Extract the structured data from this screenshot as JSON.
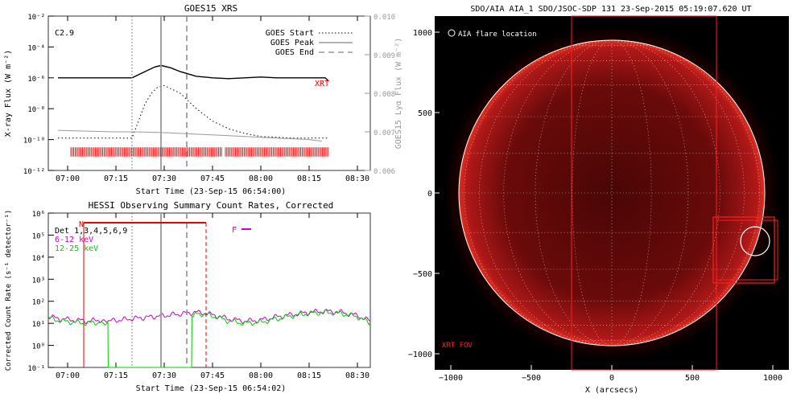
{
  "chart_data": [
    {
      "type": "line",
      "title": "GOES15 XRS",
      "xlabel": "Start Time (23-Sep-15 06:54:00)",
      "ylabel": "X-ray Flux (W m⁻²)",
      "y2label": "GOES15 Lyα Flux (W m⁻²)",
      "flare_class": "C2.9",
      "x_ticks": [
        "07:00",
        "07:15",
        "07:30",
        "07:45",
        "08:00",
        "08:15",
        "08:30"
      ],
      "y_ticks": [
        "10⁻²",
        "10⁻⁴",
        "10⁻⁶",
        "10⁻⁸",
        "10⁻¹⁰",
        "10⁻¹²"
      ],
      "y2_ticks": [
        "0.010",
        "0.009",
        "0.008",
        "0.007",
        "0.006"
      ],
      "ylim": [
        -12,
        -2
      ],
      "y2lim": [
        0.006,
        0.01
      ],
      "xlim_minutes": [
        54,
        154
      ],
      "legend": [
        {
          "label": "GOES Start",
          "style": "dotted"
        },
        {
          "label": "GOES Peak",
          "style": "solid"
        },
        {
          "label": "GOES End",
          "style": "dashed"
        }
      ],
      "events": {
        "start": 80,
        "peak": 89,
        "end": 97
      },
      "xrt_label": "XRT",
      "series": [
        {
          "name": "",
          "color": "#000000",
          "x": [
            57,
            65,
            75,
            80,
            84,
            87,
            89,
            92,
            95,
            100,
            105,
            110,
            115,
            120,
            125,
            130,
            135,
            138,
            140,
            141
          ],
          "y": [
            -6.0,
            -6.0,
            -6.0,
            -6.0,
            -5.6,
            -5.3,
            -5.2,
            -5.35,
            -5.6,
            -5.9,
            -6.0,
            -6.05,
            -6.0,
            -5.95,
            -6.0,
            -6.0,
            -6.0,
            -6.0,
            -6.0,
            -6.2
          ]
        },
        {
          "name": "",
          "color": "#000000",
          "dotted": true,
          "x": [
            57,
            65,
            75,
            80,
            82,
            84,
            86,
            88,
            90,
            92,
            95,
            100,
            105,
            110,
            115,
            120,
            125,
            130,
            135,
            138,
            141
          ],
          "y": [
            -9.9,
            -9.9,
            -9.9,
            -9.9,
            -8.8,
            -7.7,
            -7.0,
            -6.6,
            -6.5,
            -6.7,
            -7.0,
            -8.0,
            -8.8,
            -9.3,
            -9.6,
            -9.8,
            -9.85,
            -9.9,
            -9.9,
            -9.9,
            -9.9
          ]
        },
        {
          "name": "",
          "color": "#999999",
          "x": [
            57,
            65,
            75,
            80,
            85,
            90,
            95,
            100,
            105,
            110,
            115,
            120,
            125,
            130,
            135,
            139
          ],
          "y": [
            -9.4,
            -9.45,
            -9.5,
            -9.5,
            -9.52,
            -9.55,
            -9.6,
            -9.65,
            -9.7,
            -9.75,
            -9.8,
            -9.85,
            -9.9,
            -9.95,
            -10.0,
            -10.1
          ]
        }
      ],
      "xrt_coverage": [
        [
          61,
          108
        ],
        [
          109,
          141
        ]
      ]
    },
    {
      "type": "line",
      "title": "HESSI Observing Summary Count Rates, Corrected",
      "xlabel": "Start Time (23-Sep-15 06:54:02)",
      "ylabel": "Corrected Count Rate (s⁻¹ detector⁻¹)",
      "x_ticks": [
        "07:00",
        "07:15",
        "07:30",
        "07:45",
        "08:00",
        "08:15",
        "08:30"
      ],
      "y_ticks": [
        "10⁶",
        "10⁵",
        "10⁴",
        "10³",
        "10²",
        "10¹",
        "10⁰",
        "10⁻¹"
      ],
      "ylim": [
        -1,
        6
      ],
      "xlim_minutes": [
        54,
        154
      ],
      "legend": [
        {
          "label": "Det 1,3,4,5,6,9",
          "color": "#000000"
        },
        {
          "label": "6-12 keV",
          "color": "#cc00cc"
        },
        {
          "label": "12-25 keV",
          "color": "#00cc00"
        }
      ],
      "night_label": "N",
      "flag_label": "F",
      "night_interval": [
        65,
        103
      ],
      "flag_interval": [
        112,
        115
      ],
      "series": [
        {
          "name": "6-12 keV",
          "color": "#cc00cc",
          "x": [
            54,
            58,
            62,
            66,
            70,
            72.5,
            100,
            103,
            106,
            110,
            115,
            120,
            125,
            130,
            135,
            140,
            145,
            150,
            154
          ],
          "y": [
            1.3,
            1.2,
            1.15,
            1.1,
            1.15,
            1.1,
            1.5,
            1.45,
            1.35,
            1.2,
            1.1,
            1.15,
            1.3,
            1.4,
            1.5,
            1.55,
            1.5,
            1.35,
            1.1
          ]
        },
        {
          "name": "12-25 keV",
          "color": "#00cc00",
          "x": [
            54,
            58,
            62,
            66,
            70,
            72.5,
            72.6,
            98.5,
            98.6,
            100,
            103,
            106,
            110,
            115,
            120,
            125,
            130,
            135,
            140,
            145,
            150,
            154
          ],
          "y": [
            1.25,
            1.1,
            1.05,
            1.0,
            1.05,
            1.0,
            -1,
            -1,
            1.2,
            1.45,
            1.4,
            1.3,
            1.1,
            1.0,
            1.05,
            1.2,
            1.35,
            1.45,
            1.5,
            1.45,
            1.3,
            1.0
          ]
        }
      ]
    }
  ],
  "image_panel": {
    "title": "SDO/AIA AIA_1 SDO/JSOC-SDP 131 23-Sep-2015 05:19:07.620 UT",
    "legend_label": "AIA flare location",
    "fov_label": "XRT FOV",
    "xlabel": "X (arcsecs)",
    "x_ticks": [
      "−1000",
      "−500",
      "0",
      "500",
      "1000"
    ],
    "y_ticks": [
      "1000",
      "500",
      "0",
      "−500",
      "−1000"
    ],
    "disk_radius_arcsec": 950,
    "flare_location_arcsec": [
      890,
      -300
    ],
    "xrt_fov_arcsec": [
      [
        -250,
        1100
      ],
      [
        650,
        -1100
      ]
    ],
    "xrt_box_arcsec": [
      [
        630,
        -150
      ],
      [
        1010,
        -560
      ]
    ],
    "xrt_box2_arcsec": [
      [
        650,
        -170
      ],
      [
        1030,
        -540
      ]
    ],
    "colors": {
      "disk": "#b01010",
      "frame": "#ff2020",
      "circle": "#ffffff"
    }
  }
}
